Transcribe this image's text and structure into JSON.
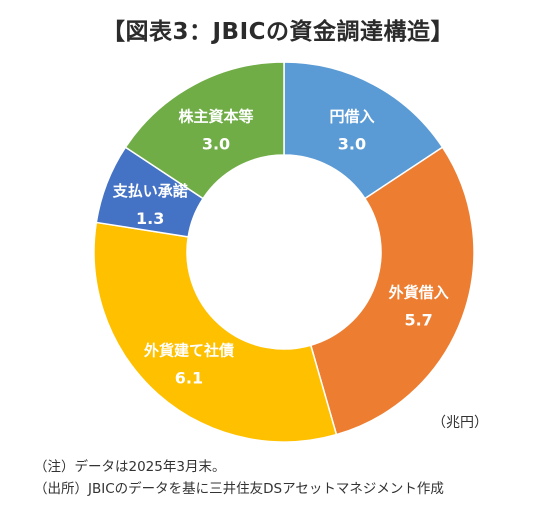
{
  "title": "【図表3：JBICの資金調達構造】",
  "unit": "（兆円）",
  "notes": [
    "（注）データは2025年3月末。",
    "（出所）JBICのデータを基に三井住友DSアセットマネジメント作成"
  ],
  "chart_data": {
    "type": "pie",
    "subtype": "donut",
    "title": "【図表3：JBICの資金調達構造】",
    "unit": "（兆円）",
    "categories": [
      "円借入",
      "外貨借入",
      "外貨建て社債",
      "支払い承諾",
      "株主資本等"
    ],
    "values": [
      3.0,
      5.7,
      6.1,
      1.3,
      3.0
    ],
    "value_labels": [
      "3.0",
      "5.7",
      "6.1",
      "1.3",
      "3.0"
    ],
    "colors": [
      "#5B9BD5",
      "#ED7D31",
      "#FFC000",
      "#4472C4",
      "#70AD47"
    ],
    "start": "12 o'clock",
    "direction": "clockwise"
  }
}
